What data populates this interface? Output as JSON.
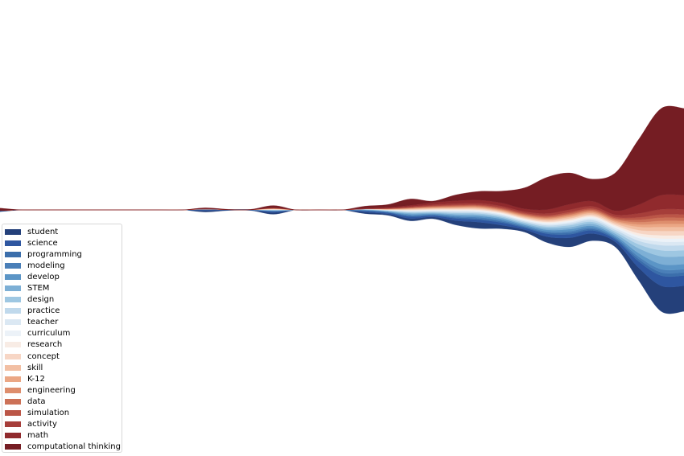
{
  "chart_data": {
    "type": "area",
    "style": "streamgraph",
    "axes_visible": false,
    "grid": false,
    "legend_position": "lower-left",
    "title": "",
    "xlabel": "",
    "ylabel": "",
    "series": [
      {
        "name": "student",
        "color": "#24407a",
        "values": [
          0.2,
          0,
          0,
          0,
          0,
          0,
          0,
          0,
          0,
          0.35,
          0.1,
          0.1,
          0.45,
          0,
          0,
          0,
          0.4,
          0.35,
          0.6,
          0.45,
          1.1,
          1.6,
          0.9,
          0.6,
          1.5,
          2.3,
          1.8,
          1.3,
          3.2,
          6.5,
          6.5
        ]
      },
      {
        "name": "science",
        "color": "#2e56a0",
        "values": [
          0.1,
          0,
          0,
          0,
          0,
          0,
          0,
          0,
          0,
          0.2,
          0.1,
          0.1,
          0.3,
          0,
          0,
          0,
          0.3,
          0.3,
          0.45,
          0.35,
          0.55,
          0.6,
          0.65,
          0.45,
          0.75,
          0.9,
          0.8,
          0.6,
          1.6,
          2.6,
          2.6
        ]
      },
      {
        "name": "programming",
        "color": "#3b6eab",
        "values": [
          0,
          0,
          0,
          0,
          0,
          0,
          0,
          0,
          0,
          0.05,
          0,
          0,
          0.05,
          0,
          0,
          0,
          0.1,
          0.1,
          0.2,
          0.15,
          0.25,
          0.3,
          0.3,
          0.25,
          0.3,
          0.4,
          0.35,
          0.3,
          0.6,
          0.8,
          0.8
        ]
      },
      {
        "name": "modeling",
        "color": "#4a7fb8",
        "values": [
          0,
          0,
          0,
          0,
          0,
          0,
          0,
          0,
          0,
          0.05,
          0,
          0,
          0.05,
          0,
          0,
          0,
          0.05,
          0.1,
          0.2,
          0.15,
          0.25,
          0.3,
          0.3,
          0.2,
          0.3,
          0.4,
          0.35,
          0.3,
          0.6,
          0.8,
          0.8
        ]
      },
      {
        "name": "develop",
        "color": "#5b95c6",
        "values": [
          0,
          0,
          0,
          0,
          0,
          0,
          0,
          0,
          0,
          0,
          0,
          0,
          0.05,
          0,
          0,
          0,
          0.1,
          0.1,
          0.25,
          0.2,
          0.3,
          0.35,
          0.35,
          0.3,
          0.4,
          0.5,
          0.45,
          0.4,
          0.9,
          1.3,
          1.3
        ]
      },
      {
        "name": "STEM",
        "color": "#7dafd5",
        "values": [
          0,
          0,
          0,
          0,
          0,
          0,
          0,
          0,
          0,
          0.05,
          0,
          0,
          0.1,
          0,
          0,
          0,
          0.1,
          0.1,
          0.25,
          0.2,
          0.3,
          0.35,
          0.3,
          0.3,
          0.4,
          0.5,
          0.5,
          0.5,
          1.2,
          2,
          2
        ]
      },
      {
        "name": "design",
        "color": "#9ec7e2",
        "values": [
          0,
          0,
          0,
          0,
          0,
          0,
          0,
          0,
          0,
          0.05,
          0,
          0,
          0.1,
          0,
          0,
          0,
          0.05,
          0.1,
          0.2,
          0.2,
          0.3,
          0.3,
          0.3,
          0.3,
          0.4,
          0.5,
          0.5,
          0.5,
          1,
          1.5,
          1.5
        ]
      },
      {
        "name": "practice",
        "color": "#c0d9ec",
        "values": [
          0,
          0,
          0,
          0,
          0,
          0,
          0,
          0,
          0,
          0,
          0,
          0,
          0.05,
          0,
          0,
          0,
          0.05,
          0.1,
          0.2,
          0.2,
          0.3,
          0.3,
          0.3,
          0.3,
          0.35,
          0.4,
          0.45,
          0.5,
          0.9,
          1.3,
          1.3
        ]
      },
      {
        "name": "teacher",
        "color": "#dbe8f3",
        "values": [
          0,
          0,
          0,
          0,
          0,
          0,
          0,
          0,
          0,
          0,
          0,
          0,
          0.05,
          0,
          0,
          0,
          0.05,
          0.05,
          0.15,
          0.15,
          0.2,
          0.25,
          0.25,
          0.25,
          0.3,
          0.35,
          0.4,
          0.45,
          0.7,
          0.9,
          0.9
        ]
      },
      {
        "name": "curriculum",
        "color": "#ecf2f8",
        "values": [
          0,
          0,
          0,
          0,
          0,
          0,
          0,
          0,
          0,
          0,
          0,
          0,
          0,
          0,
          0,
          0,
          0,
          0.05,
          0.15,
          0.15,
          0.2,
          0.2,
          0.2,
          0.25,
          0.3,
          0.35,
          0.35,
          0.4,
          0.6,
          0.8,
          0.8
        ]
      },
      {
        "name": "research",
        "color": "#f8ece5",
        "values": [
          0,
          0,
          0,
          0,
          0,
          0,
          0,
          0,
          0,
          0,
          0,
          0,
          0.05,
          0,
          0,
          0,
          0,
          0.05,
          0.1,
          0.15,
          0.2,
          0.2,
          0.2,
          0.2,
          0.25,
          0.3,
          0.3,
          0.35,
          0.6,
          0.8,
          0.8
        ]
      },
      {
        "name": "concept",
        "color": "#f7d6c5",
        "values": [
          0,
          0,
          0,
          0,
          0,
          0,
          0,
          0,
          0,
          0,
          0,
          0,
          0.05,
          0,
          0,
          0,
          0,
          0.05,
          0.15,
          0.2,
          0.2,
          0.25,
          0.25,
          0.25,
          0.3,
          0.35,
          0.35,
          0.4,
          0.8,
          1.1,
          1.1
        ]
      },
      {
        "name": "skill",
        "color": "#f2bfa3",
        "values": [
          0,
          0,
          0,
          0,
          0,
          0,
          0,
          0,
          0,
          0,
          0,
          0,
          0.05,
          0,
          0,
          0,
          0,
          0.05,
          0.15,
          0.15,
          0.2,
          0.2,
          0.2,
          0.25,
          0.3,
          0.35,
          0.35,
          0.4,
          0.8,
          1,
          1
        ]
      },
      {
        "name": "K-12",
        "color": "#eba785",
        "values": [
          0,
          0,
          0,
          0,
          0,
          0,
          0,
          0,
          0,
          0,
          0,
          0,
          0.05,
          0,
          0,
          0,
          0,
          0.05,
          0.1,
          0.15,
          0.15,
          0.2,
          0.2,
          0.2,
          0.25,
          0.3,
          0.3,
          0.3,
          0.6,
          0.8,
          0.8
        ]
      },
      {
        "name": "engineering",
        "color": "#de8e6d",
        "values": [
          0,
          0,
          0,
          0,
          0,
          0,
          0,
          0,
          0,
          0,
          0,
          0,
          0.05,
          0,
          0,
          0,
          0,
          0.05,
          0.1,
          0.15,
          0.2,
          0.2,
          0.2,
          0.25,
          0.25,
          0.3,
          0.3,
          0.35,
          0.6,
          0.8,
          0.8
        ]
      },
      {
        "name": "data",
        "color": "#cc7157",
        "values": [
          0,
          0,
          0,
          0,
          0,
          0,
          0,
          0,
          0,
          0,
          0,
          0,
          0.05,
          0,
          0,
          0,
          0,
          0.05,
          0.1,
          0.15,
          0.2,
          0.2,
          0.2,
          0.2,
          0.25,
          0.3,
          0.3,
          0.3,
          0.6,
          0.8,
          0.8
        ]
      },
      {
        "name": "simulation",
        "color": "#bb5647",
        "values": [
          0,
          0,
          0,
          0,
          0,
          0,
          0,
          0,
          0,
          0,
          0,
          0,
          0.05,
          0,
          0,
          0,
          0,
          0.05,
          0.1,
          0.15,
          0.2,
          0.2,
          0.25,
          0.25,
          0.3,
          0.35,
          0.3,
          0.35,
          0.6,
          0.8,
          0.8
        ]
      },
      {
        "name": "activity",
        "color": "#a63e3a",
        "values": [
          0,
          0,
          0,
          0,
          0,
          0,
          0,
          0,
          0,
          0.05,
          0,
          0,
          0.05,
          0,
          0,
          0,
          0.05,
          0.1,
          0.2,
          0.3,
          0.35,
          0.4,
          0.4,
          0.4,
          0.5,
          0.6,
          0.55,
          0.55,
          1,
          1.3,
          1.3
        ]
      },
      {
        "name": "math",
        "color": "#902a2d",
        "values": [
          0,
          0,
          0,
          0,
          0,
          0,
          0,
          0,
          0,
          0.05,
          0,
          0,
          0.05,
          0,
          0,
          0,
          0.1,
          0.2,
          0.3,
          0.55,
          0.7,
          0.8,
          0.8,
          0.7,
          1,
          1.4,
          1.3,
          1,
          2.2,
          3.6,
          3.6
        ]
      },
      {
        "name": "computational thinking",
        "color": "#751d23",
        "values": [
          0.6,
          0,
          0,
          0,
          0,
          0,
          0,
          0,
          0,
          0.2,
          0.1,
          0.1,
          0.55,
          0,
          0,
          0,
          0.55,
          0.7,
          1.6,
          0.35,
          1.5,
          2.2,
          3,
          5.3,
          8.2,
          7.9,
          5.6,
          9.7,
          16.5,
          22,
          22
        ]
      }
    ]
  }
}
